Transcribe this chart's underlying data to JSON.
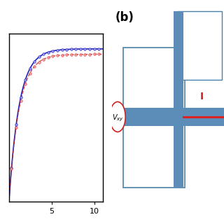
{
  "title_b": "(b)",
  "title_fontsize": 12,
  "title_weight": "bold",
  "bg_color": "#ffffff",
  "plot_bg": "#ffffff",
  "x_ticks": [
    5,
    10
  ],
  "x_lim": [
    0,
    11
  ],
  "y_lim": [
    0,
    1.1
  ],
  "curve_color_blue": "#2222bb",
  "curve_color_red": "#cc2222",
  "marker_size": 2.5,
  "marker_color_blue": "#aaaaff",
  "marker_color_red": "#ffaaaa",
  "schematic_box_color": "#5b8db8",
  "schematic_line_color": "#4a7fa8",
  "schematic_red_line": "#dd2222",
  "schematic_vxy_circle_color": "#cc2222",
  "schematic_I_color": "#cc2222"
}
